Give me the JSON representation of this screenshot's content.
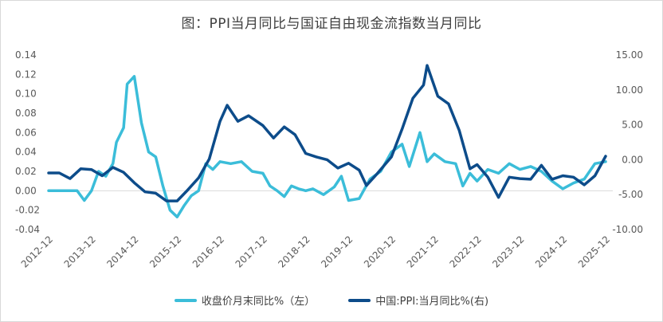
{
  "chart_data": {
    "type": "line",
    "title": "图：PPI当月同比与国证自由现金流指数当月同比",
    "left_axis": {
      "ylim": [
        -0.04,
        0.14
      ],
      "ticks": [
        "-0.04",
        "-0.02",
        "0.00",
        "0.02",
        "0.04",
        "0.06",
        "0.08",
        "0.10",
        "0.12",
        "0.14"
      ]
    },
    "right_axis": {
      "ylim": [
        -10.0,
        15.0
      ],
      "ticks": [
        "-10.00",
        "-5.00",
        "0.00",
        "5.00",
        "10.00",
        "15.00"
      ]
    },
    "x_ticks": [
      "2012-12",
      "2013-12",
      "2014-12",
      "2015-12",
      "2016-12",
      "2017-12",
      "2018-12",
      "2019-12",
      "2020-12",
      "2021-12",
      "2022-12",
      "2023-12",
      "2024-12",
      "2025-12"
    ],
    "grid": "horizontal-zero-line",
    "legend_position": "bottom",
    "series": [
      {
        "name": "收盘价月末同比%（左）",
        "axis": "left",
        "color": "#3bbdd9",
        "points": [
          [
            "2012-12",
            0.0
          ],
          [
            "2013-03",
            0.0
          ],
          [
            "2013-06",
            0.0
          ],
          [
            "2013-08",
            0.0
          ],
          [
            "2013-10",
            -0.01
          ],
          [
            "2013-12",
            0.0
          ],
          [
            "2014-02",
            0.02
          ],
          [
            "2014-04",
            0.015
          ],
          [
            "2014-06",
            0.028
          ],
          [
            "2014-07",
            0.05
          ],
          [
            "2014-09",
            0.065
          ],
          [
            "2014-10",
            0.11
          ],
          [
            "2014-12",
            0.118
          ],
          [
            "2015-02",
            0.07
          ],
          [
            "2015-04",
            0.04
          ],
          [
            "2015-06",
            0.035
          ],
          [
            "2015-08",
            0.005
          ],
          [
            "2015-10",
            -0.02
          ],
          [
            "2015-12",
            -0.027
          ],
          [
            "2016-02",
            -0.015
          ],
          [
            "2016-04",
            -0.005
          ],
          [
            "2016-06",
            0.0
          ],
          [
            "2016-08",
            0.028
          ],
          [
            "2016-10",
            0.022
          ],
          [
            "2016-12",
            0.03
          ],
          [
            "2017-03",
            0.028
          ],
          [
            "2017-06",
            0.03
          ],
          [
            "2017-09",
            0.02
          ],
          [
            "2017-12",
            0.018
          ],
          [
            "2018-02",
            0.005
          ],
          [
            "2018-04",
            0.0
          ],
          [
            "2018-06",
            -0.006
          ],
          [
            "2018-08",
            0.005
          ],
          [
            "2018-10",
            0.002
          ],
          [
            "2018-12",
            0.0
          ],
          [
            "2019-02",
            0.002
          ],
          [
            "2019-05",
            -0.004
          ],
          [
            "2019-08",
            0.004
          ],
          [
            "2019-10",
            0.015
          ],
          [
            "2019-12",
            -0.01
          ],
          [
            "2020-03",
            -0.008
          ],
          [
            "2020-06",
            0.012
          ],
          [
            "2020-09",
            0.02
          ],
          [
            "2020-12",
            0.04
          ],
          [
            "2021-03",
            0.048
          ],
          [
            "2021-05",
            0.025
          ],
          [
            "2021-08",
            0.06
          ],
          [
            "2021-10",
            0.03
          ],
          [
            "2021-12",
            0.038
          ],
          [
            "2022-03",
            0.03
          ],
          [
            "2022-06",
            0.028
          ],
          [
            "2022-08",
            0.005
          ],
          [
            "2022-10",
            0.018
          ],
          [
            "2022-12",
            0.01
          ],
          [
            "2023-03",
            0.022
          ],
          [
            "2023-06",
            0.018
          ],
          [
            "2023-09",
            0.028
          ],
          [
            "2023-12",
            0.022
          ],
          [
            "2024-03",
            0.025
          ],
          [
            "2024-06",
            0.02
          ],
          [
            "2024-09",
            0.01
          ],
          [
            "2024-12",
            0.002
          ],
          [
            "2025-03",
            0.008
          ],
          [
            "2025-06",
            0.012
          ],
          [
            "2025-09",
            0.028
          ],
          [
            "2025-12",
            0.03
          ]
        ]
      },
      {
        "name": "中国:PPI:当月同比%(右)",
        "axis": "right",
        "color": "#0d4c8a",
        "points": [
          [
            "2012-12",
            -1.9
          ],
          [
            "2013-03",
            -1.9
          ],
          [
            "2013-06",
            -2.7
          ],
          [
            "2013-09",
            -1.3
          ],
          [
            "2013-12",
            -1.4
          ],
          [
            "2014-03",
            -2.3
          ],
          [
            "2014-06",
            -1.1
          ],
          [
            "2014-09",
            -1.8
          ],
          [
            "2014-12",
            -3.3
          ],
          [
            "2015-03",
            -4.6
          ],
          [
            "2015-06",
            -4.8
          ],
          [
            "2015-09",
            -5.9
          ],
          [
            "2015-12",
            -5.9
          ],
          [
            "2016-03",
            -4.3
          ],
          [
            "2016-06",
            -2.6
          ],
          [
            "2016-09",
            0.1
          ],
          [
            "2016-12",
            5.5
          ],
          [
            "2017-02",
            7.8
          ],
          [
            "2017-05",
            5.5
          ],
          [
            "2017-08",
            6.3
          ],
          [
            "2017-12",
            4.9
          ],
          [
            "2018-03",
            3.1
          ],
          [
            "2018-06",
            4.7
          ],
          [
            "2018-09",
            3.6
          ],
          [
            "2018-12",
            0.9
          ],
          [
            "2019-03",
            0.4
          ],
          [
            "2019-06",
            0.0
          ],
          [
            "2019-09",
            -1.2
          ],
          [
            "2019-12",
            -0.5
          ],
          [
            "2020-03",
            -1.5
          ],
          [
            "2020-05",
            -3.7
          ],
          [
            "2020-08",
            -2.0
          ],
          [
            "2020-12",
            0.4
          ],
          [
            "2021-03",
            4.4
          ],
          [
            "2021-06",
            8.8
          ],
          [
            "2021-09",
            10.7
          ],
          [
            "2021-10",
            13.5
          ],
          [
            "2022-01",
            9.1
          ],
          [
            "2022-04",
            8.0
          ],
          [
            "2022-07",
            4.2
          ],
          [
            "2022-10",
            -1.3
          ],
          [
            "2022-12",
            -0.7
          ],
          [
            "2023-03",
            -2.5
          ],
          [
            "2023-06",
            -5.4
          ],
          [
            "2023-09",
            -2.5
          ],
          [
            "2023-12",
            -2.7
          ],
          [
            "2024-03",
            -2.8
          ],
          [
            "2024-06",
            -0.8
          ],
          [
            "2024-09",
            -2.8
          ],
          [
            "2024-12",
            -2.3
          ],
          [
            "2025-03",
            -2.5
          ],
          [
            "2025-06",
            -3.6
          ],
          [
            "2025-09",
            -2.3
          ],
          [
            "2025-12",
            0.5
          ]
        ]
      }
    ]
  }
}
